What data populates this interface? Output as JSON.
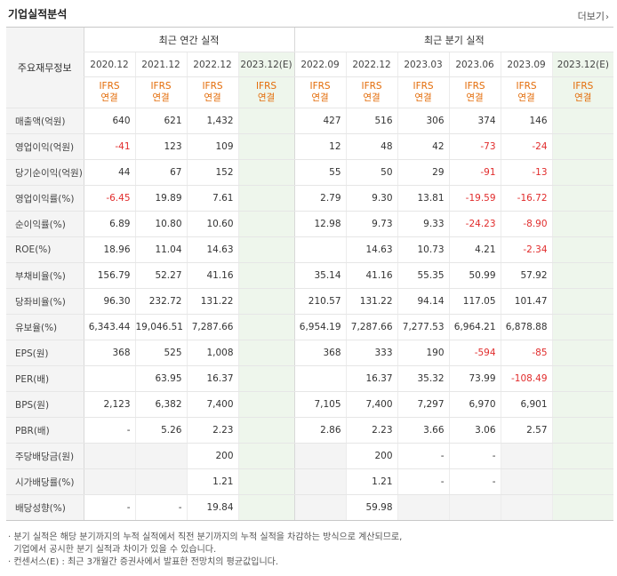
{
  "title": "기업실적분석",
  "more_label": "더보기",
  "header": {
    "row_label": "주요재무정보",
    "annual_group": "최근 연간 실적",
    "quarter_group": "최근 분기 실적",
    "annual_periods": [
      "2020.12",
      "2021.12",
      "2022.12",
      "2023.12(E)"
    ],
    "quarter_periods": [
      "2022.09",
      "2022.12",
      "2023.03",
      "2023.06",
      "2023.09",
      "2023.12(E)"
    ],
    "basis_line1": "IFRS",
    "basis_line2": "연결"
  },
  "rows": [
    {
      "label": "매출액(억원)",
      "cells": [
        "640",
        "621",
        "1,432",
        "",
        "427",
        "516",
        "306",
        "374",
        "146",
        ""
      ]
    },
    {
      "label": "영업이익(억원)",
      "cells": [
        "-41",
        "123",
        "109",
        "",
        "12",
        "48",
        "42",
        "-73",
        "-24",
        ""
      ]
    },
    {
      "label": "당기순이익(억원)",
      "cells": [
        "44",
        "67",
        "152",
        "",
        "55",
        "50",
        "29",
        "-91",
        "-13",
        ""
      ]
    },
    {
      "label": "영업이익률(%)",
      "cells": [
        "-6.45",
        "19.89",
        "7.61",
        "",
        "2.79",
        "9.30",
        "13.81",
        "-19.59",
        "-16.72",
        ""
      ]
    },
    {
      "label": "순이익률(%)",
      "cells": [
        "6.89",
        "10.80",
        "10.60",
        "",
        "12.98",
        "9.73",
        "9.33",
        "-24.23",
        "-8.90",
        ""
      ]
    },
    {
      "label": "ROE(%)",
      "cells": [
        "18.96",
        "11.04",
        "14.63",
        "",
        "",
        "14.63",
        "10.73",
        "4.21",
        "-2.34",
        ""
      ]
    },
    {
      "label": "부채비율(%)",
      "cells": [
        "156.79",
        "52.27",
        "41.16",
        "",
        "35.14",
        "41.16",
        "55.35",
        "50.99",
        "57.92",
        ""
      ]
    },
    {
      "label": "당좌비율(%)",
      "cells": [
        "96.30",
        "232.72",
        "131.22",
        "",
        "210.57",
        "131.22",
        "94.14",
        "117.05",
        "101.47",
        ""
      ]
    },
    {
      "label": "유보율(%)",
      "cells": [
        "6,343.44",
        "19,046.51",
        "7,287.66",
        "",
        "6,954.19",
        "7,287.66",
        "7,277.53",
        "6,964.21",
        "6,878.88",
        ""
      ]
    },
    {
      "label": "EPS(원)",
      "cells": [
        "368",
        "525",
        "1,008",
        "",
        "368",
        "333",
        "190",
        "-594",
        "-85",
        ""
      ]
    },
    {
      "label": "PER(배)",
      "cells": [
        "",
        "63.95",
        "16.37",
        "",
        "",
        "16.37",
        "35.32",
        "73.99",
        "-108.49",
        ""
      ]
    },
    {
      "label": "BPS(원)",
      "cells": [
        "2,123",
        "6,382",
        "7,400",
        "",
        "7,105",
        "7,400",
        "7,297",
        "6,970",
        "6,901",
        ""
      ]
    },
    {
      "label": "PBR(배)",
      "cells": [
        "-",
        "5.26",
        "2.23",
        "",
        "2.86",
        "2.23",
        "3.66",
        "3.06",
        "2.57",
        ""
      ]
    },
    {
      "label": "주당배당금(원)",
      "cells": [
        "",
        "",
        "200",
        "",
        "",
        "200",
        "-",
        "-",
        "",
        ""
      ]
    },
    {
      "label": "시가배당률(%)",
      "cells": [
        "",
        "",
        "1.21",
        "",
        "",
        "1.21",
        "-",
        "-",
        "",
        ""
      ]
    },
    {
      "label": "배당성향(%)",
      "cells": [
        "-",
        "-",
        "19.84",
        "",
        "",
        "59.98",
        "",
        "",
        "",
        ""
      ]
    }
  ],
  "notes": [
    "· 분기 실적은 해당 분기까지의 누적 실적에서 직전 분기까지의 누적 실적을 차감하는 방식으로 계산되므로,",
    "  기업에서 공시한 분기 실적과 차이가 있을 수 있습니다.",
    "· 컨센서스(E) : 최근 3개월간 증권사에서 발표한 전망치의 평균값입니다."
  ],
  "colors": {
    "negative": "#e12c2c",
    "basis": "#e36c09",
    "estimate_bg": "#eef6ec",
    "header_bg": "#f4f4f4"
  }
}
